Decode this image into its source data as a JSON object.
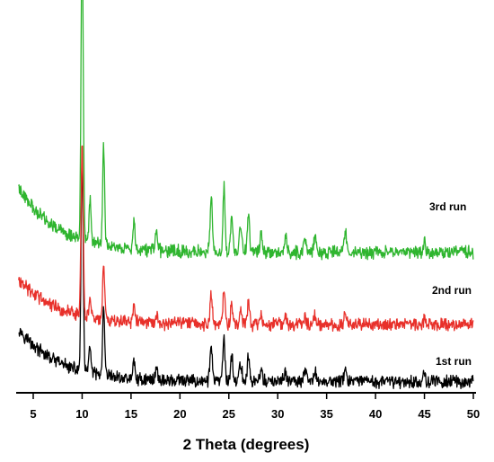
{
  "chart_data": {
    "type": "line",
    "title": "",
    "xlabel": "2 Theta (degrees)",
    "ylabel": "",
    "xlim": [
      3.5,
      50
    ],
    "xticks": [
      5,
      10,
      15,
      20,
      25,
      30,
      35,
      40,
      45,
      50
    ],
    "xtick_labels": [
      "5",
      "10",
      "15",
      "20",
      "25",
      "30",
      "35",
      "40",
      "45",
      "50"
    ],
    "grid": false,
    "legend": "none",
    "peaks": [
      {
        "x": 10.0,
        "height": 1.0,
        "width": 0.11
      },
      {
        "x": 10.8,
        "height": 0.14,
        "width": 0.1
      },
      {
        "x": 12.2,
        "height": 0.32,
        "width": 0.1
      },
      {
        "x": 15.3,
        "height": 0.09,
        "width": 0.1
      },
      {
        "x": 17.6,
        "height": 0.06,
        "width": 0.12
      },
      {
        "x": 23.2,
        "height": 0.17,
        "width": 0.12
      },
      {
        "x": 24.5,
        "height": 0.22,
        "width": 0.1
      },
      {
        "x": 25.3,
        "height": 0.12,
        "width": 0.12
      },
      {
        "x": 26.2,
        "height": 0.09,
        "width": 0.12
      },
      {
        "x": 27.0,
        "height": 0.12,
        "width": 0.12
      },
      {
        "x": 28.3,
        "height": 0.07,
        "width": 0.1
      },
      {
        "x": 30.8,
        "height": 0.05,
        "width": 0.12
      },
      {
        "x": 32.8,
        "height": 0.05,
        "width": 0.12
      },
      {
        "x": 33.8,
        "height": 0.05,
        "width": 0.12
      },
      {
        "x": 36.9,
        "height": 0.07,
        "width": 0.12
      },
      {
        "x": 45.0,
        "height": 0.04,
        "width": 0.1
      }
    ],
    "series": [
      {
        "name": "1st run",
        "color": "#000000",
        "baseline_end": 0.02,
        "baseline_start": 0.16,
        "peak_scale": 0.55,
        "offset": 0.0
      },
      {
        "name": "2nd run",
        "color": "#e8302a",
        "baseline_end": 0.17,
        "baseline_start": 0.29,
        "peak_scale": 0.45,
        "offset": 0.0
      },
      {
        "name": "3rd run",
        "color": "#2fb52f",
        "baseline_end": 0.36,
        "baseline_start": 0.53,
        "peak_scale": 0.8,
        "offset": 0.0
      }
    ]
  }
}
